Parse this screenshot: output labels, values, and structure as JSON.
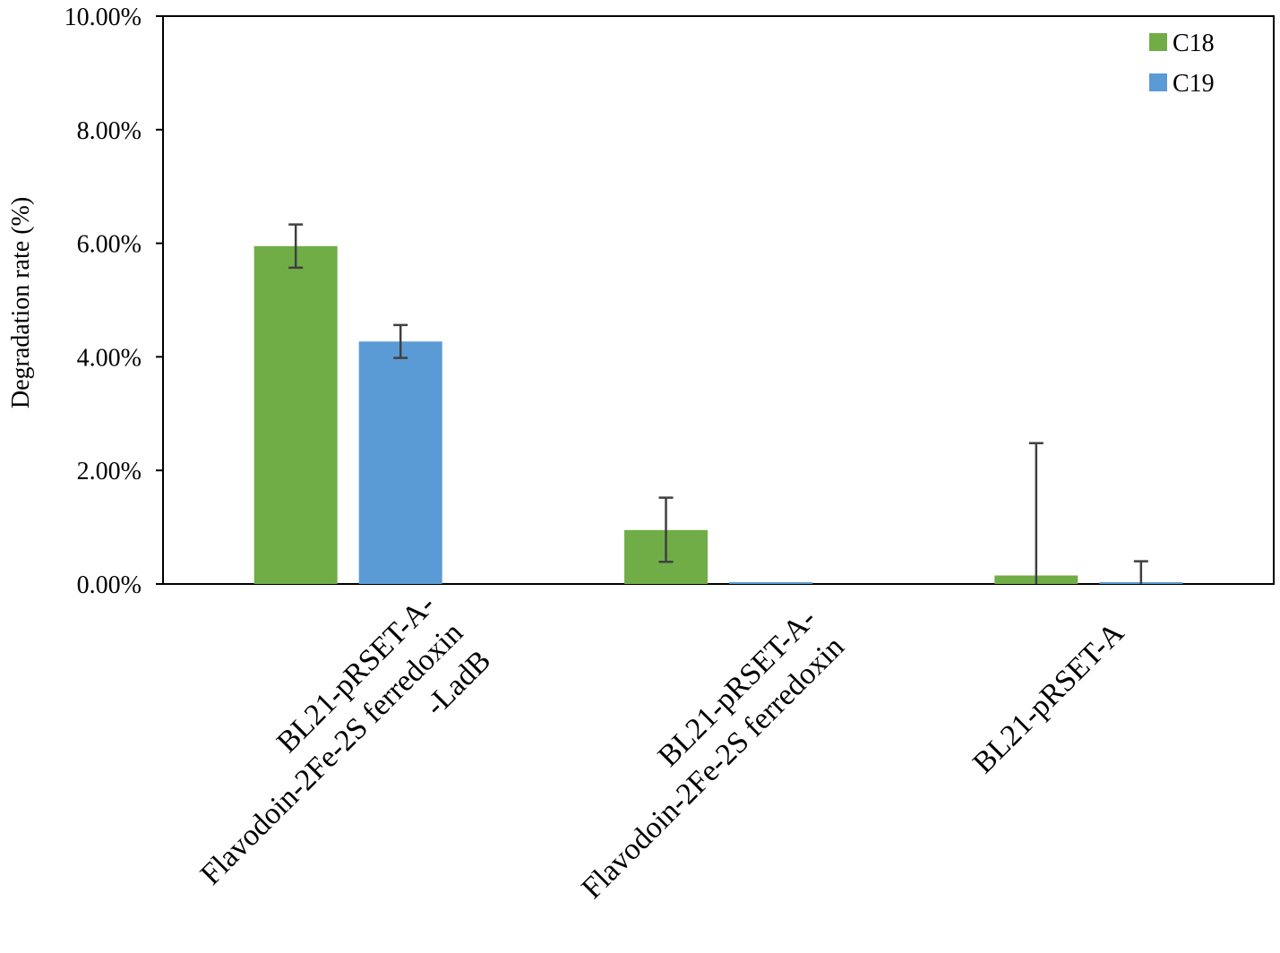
{
  "chart_data": {
    "type": "bar",
    "ylabel": "Degradation rate (%)",
    "ylim": [
      0,
      0.1
    ],
    "yticks": [
      0,
      0.02,
      0.04,
      0.06,
      0.08,
      0.1
    ],
    "ytick_labels": [
      "0.00%",
      "2.00%",
      "4.00%",
      "6.00%",
      "8.00%",
      "10.00%"
    ],
    "grid": false,
    "legend_position": "top-right",
    "categories": [
      [
        "BL21-pRSET-A-",
        "Flavodoin-2Fe-2S ferredoxin",
        "-LadB"
      ],
      [
        "BL21-pRSET-A-",
        "Flavodoin-2Fe-2S ferredoxin"
      ],
      [
        "BL21-pRSET-A"
      ]
    ],
    "series": [
      {
        "name": "C18",
        "color": "#70ad47",
        "values": [
          0.0595,
          0.0095,
          0.0015
        ],
        "error_high": [
          0.0633,
          0.0152,
          0.0248
        ],
        "error_low": [
          0.0557,
          0.0039,
          0.0
        ]
      },
      {
        "name": "C19",
        "color": "#5b9bd5",
        "values": [
          0.0427,
          0.0,
          0.0
        ],
        "error_high": [
          0.0456,
          null,
          0.004
        ],
        "error_low": [
          0.0398,
          null,
          0.0
        ]
      }
    ]
  }
}
